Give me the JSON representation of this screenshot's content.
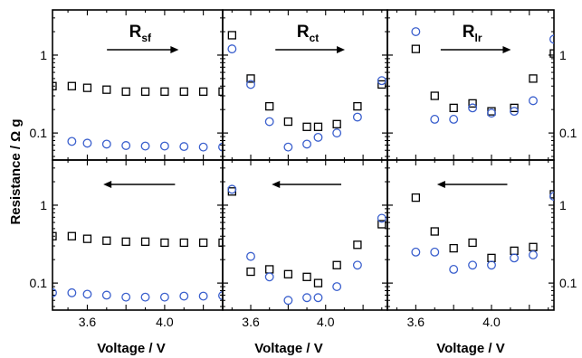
{
  "figure": {
    "ylabel": "Resistance / Ω g",
    "xlabel": "Voltage / V",
    "xlabel_middle": "Voltage  / V",
    "colors": {
      "square": "#000000",
      "circle": "#3a5fcd",
      "frame": "#000000"
    }
  },
  "chart_data": [
    {
      "type": "scatter",
      "panel": "top-left",
      "title_main": "R",
      "title_sub": "sf",
      "arrow": "right",
      "xlim": [
        3.42,
        4.3
      ],
      "ylog": true,
      "ylim": [
        0.045,
        3.8
      ],
      "grid": false,
      "series": [
        {
          "marker": "square",
          "x": [
            3.42,
            3.52,
            3.6,
            3.7,
            3.8,
            3.9,
            4.0,
            4.1,
            4.2,
            4.3
          ],
          "y": [
            0.4,
            0.4,
            0.38,
            0.36,
            0.34,
            0.34,
            0.34,
            0.34,
            0.34,
            0.34
          ]
        },
        {
          "marker": "circle",
          "x": [
            3.52,
            3.6,
            3.7,
            3.8,
            3.9,
            4.0,
            4.1,
            4.2,
            4.3
          ],
          "y": [
            0.078,
            0.074,
            0.072,
            0.069,
            0.068,
            0.068,
            0.067,
            0.066,
            0.066
          ]
        }
      ]
    },
    {
      "type": "scatter",
      "panel": "top-middle",
      "title_main": "R",
      "title_sub": "ct",
      "arrow": "right",
      "xlim": [
        3.45,
        4.33
      ],
      "ylog": true,
      "ylim": [
        0.045,
        3.8
      ],
      "grid": false,
      "series": [
        {
          "marker": "square",
          "x": [
            3.5,
            3.6,
            3.7,
            3.8,
            3.9,
            3.96,
            4.06,
            4.17,
            4.3
          ],
          "y": [
            1.8,
            0.5,
            0.22,
            0.14,
            0.12,
            0.12,
            0.13,
            0.22,
            0.42
          ]
        },
        {
          "marker": "circle",
          "x": [
            3.5,
            3.6,
            3.7,
            3.8,
            3.9,
            3.96,
            4.06,
            4.17,
            4.3
          ],
          "y": [
            1.2,
            0.42,
            0.14,
            0.066,
            0.072,
            0.088,
            0.1,
            0.16,
            0.47
          ]
        }
      ]
    },
    {
      "type": "scatter",
      "panel": "top-right",
      "title_main": "R",
      "title_sub": "lr",
      "arrow": "right",
      "xlim": [
        3.45,
        4.33
      ],
      "ylog": true,
      "ylim": [
        0.045,
        3.8
      ],
      "grid": false,
      "series": [
        {
          "marker": "square",
          "x": [
            3.6,
            3.7,
            3.8,
            3.9,
            4.0,
            4.12,
            4.22,
            4.33
          ],
          "y": [
            1.2,
            0.3,
            0.21,
            0.24,
            0.19,
            0.21,
            0.5,
            1.05
          ]
        },
        {
          "marker": "circle",
          "x": [
            3.6,
            3.7,
            3.8,
            3.9,
            4.0,
            4.12,
            4.22,
            4.33
          ],
          "y": [
            2.0,
            0.15,
            0.15,
            0.21,
            0.18,
            0.19,
            0.26,
            1.6
          ]
        }
      ]
    },
    {
      "type": "scatter",
      "panel": "bottom-left",
      "arrow": "left",
      "xlim": [
        3.42,
        4.3
      ],
      "ylog": true,
      "ylim": [
        0.045,
        3.8
      ],
      "grid": false,
      "series": [
        {
          "marker": "square",
          "x": [
            3.42,
            3.52,
            3.6,
            3.7,
            3.8,
            3.9,
            4.0,
            4.1,
            4.2,
            4.3
          ],
          "y": [
            0.4,
            0.4,
            0.37,
            0.35,
            0.34,
            0.34,
            0.33,
            0.33,
            0.33,
            0.33
          ]
        },
        {
          "marker": "circle",
          "x": [
            3.42,
            3.52,
            3.6,
            3.7,
            3.8,
            3.9,
            4.0,
            4.1,
            4.2,
            4.3
          ],
          "y": [
            0.075,
            0.075,
            0.072,
            0.07,
            0.066,
            0.066,
            0.066,
            0.068,
            0.068,
            0.069
          ]
        }
      ]
    },
    {
      "type": "scatter",
      "panel": "bottom-middle",
      "arrow": "left",
      "xlim": [
        3.45,
        4.33
      ],
      "ylog": true,
      "ylim": [
        0.045,
        3.8
      ],
      "grid": false,
      "series": [
        {
          "marker": "square",
          "x": [
            3.5,
            3.6,
            3.7,
            3.8,
            3.9,
            3.96,
            4.06,
            4.17,
            4.3
          ],
          "y": [
            1.5,
            0.14,
            0.15,
            0.13,
            0.12,
            0.1,
            0.17,
            0.31,
            0.57
          ]
        },
        {
          "marker": "circle",
          "x": [
            3.5,
            3.6,
            3.7,
            3.8,
            3.9,
            3.96,
            4.06,
            4.17,
            4.3
          ],
          "y": [
            1.6,
            0.22,
            0.12,
            0.06,
            0.065,
            0.065,
            0.09,
            0.17,
            0.68
          ]
        }
      ]
    },
    {
      "type": "scatter",
      "panel": "bottom-right",
      "arrow": "left",
      "xlim": [
        3.45,
        4.33
      ],
      "ylog": true,
      "ylim": [
        0.045,
        3.8
      ],
      "grid": false,
      "series": [
        {
          "marker": "square",
          "x": [
            3.6,
            3.7,
            3.8,
            3.9,
            4.0,
            4.12,
            4.22,
            4.33
          ],
          "y": [
            1.25,
            0.46,
            0.28,
            0.33,
            0.21,
            0.26,
            0.29,
            1.38
          ]
        },
        {
          "marker": "circle",
          "x": [
            3.6,
            3.7,
            3.8,
            3.9,
            4.0,
            4.12,
            4.22,
            4.33
          ],
          "y": [
            0.25,
            0.25,
            0.15,
            0.17,
            0.17,
            0.21,
            0.23,
            1.3
          ]
        }
      ]
    }
  ],
  "axes": {
    "y_ticks": [
      {
        "value": 1,
        "label": "1"
      },
      {
        "value": 0.1,
        "label": "0.1"
      }
    ],
    "x_ticks": [
      {
        "value": 3.6,
        "label": "3.6"
      },
      {
        "value": 4.0,
        "label": "4.0"
      }
    ]
  }
}
